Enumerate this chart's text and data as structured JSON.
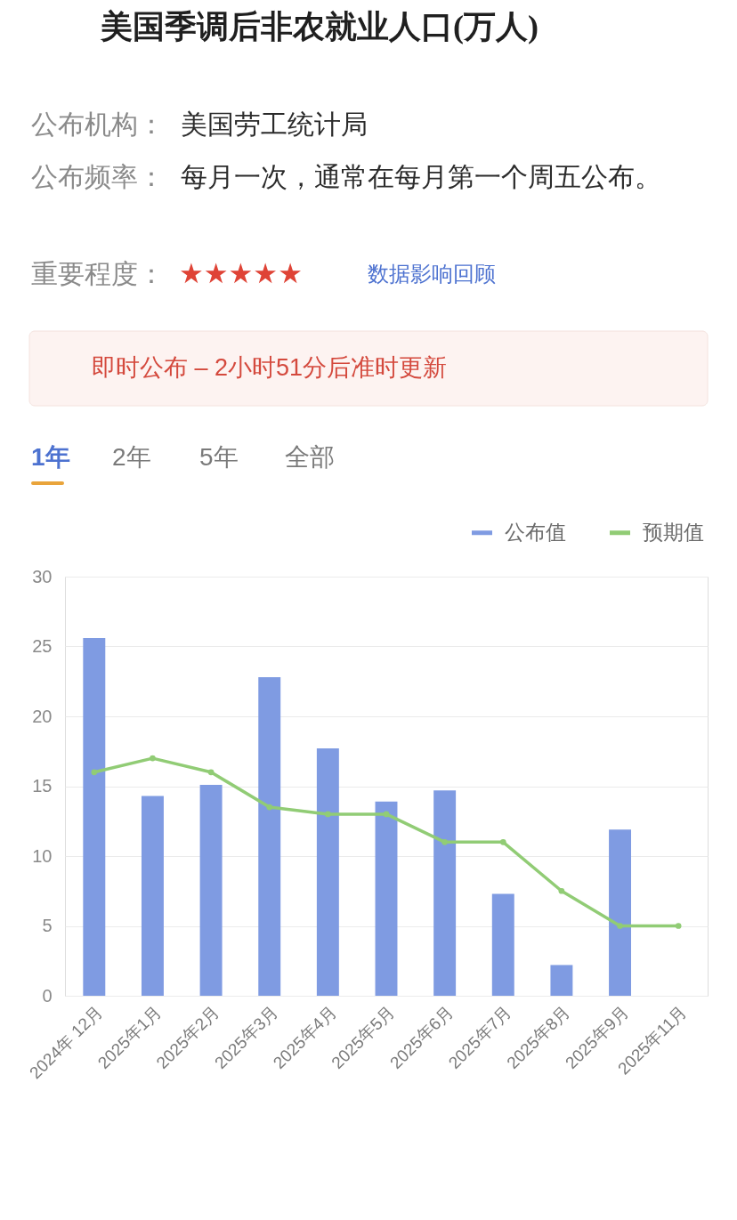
{
  "chart_data": {
    "type": "bar",
    "title": "美国季调后非农就业人口(万人)",
    "categories": [
      "2024年 12月",
      "2025年1月",
      "2025年2月",
      "2025年3月",
      "2025年4月",
      "2025年5月",
      "2025年6月",
      "2025年7月",
      "2025年8月",
      "2025年9月",
      "2025年11月"
    ],
    "series": [
      {
        "name": "公布值",
        "color": "#7f9be2",
        "values": [
          25.6,
          14.3,
          15.1,
          22.8,
          17.7,
          13.9,
          14.7,
          7.3,
          2.2,
          11.9,
          null
        ]
      },
      {
        "name": "预期值",
        "type": "line",
        "color": "#91cc75",
        "values": [
          16,
          17,
          16,
          13.5,
          13,
          13,
          11,
          11,
          7.5,
          5,
          5
        ]
      }
    ],
    "ylim": [
      0,
      30
    ],
    "yticks": [
      0,
      5,
      10,
      15,
      20,
      25,
      30
    ],
    "grid": "y",
    "legend": "top right",
    "marker": "circle",
    "line_style": "solid",
    "annotations": [
      "公布机构：",
      "美国劳工统计局",
      "公布频率：",
      "每月一次，通常在每月第一个周五公布。",
      "重要程度：",
      "★★★★★",
      "数据影响回顾",
      "即时公布 – 2小时51分后准时更新",
      "1年",
      "2年",
      "5年",
      "全部"
    ]
  }
}
